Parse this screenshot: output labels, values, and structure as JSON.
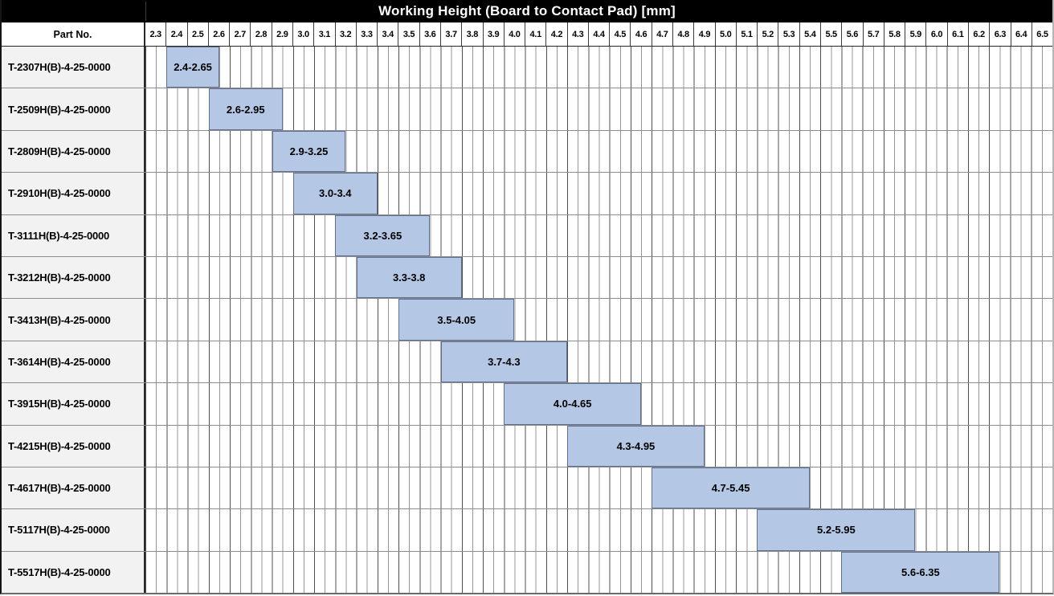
{
  "title_bar": {
    "title": "Working Height (Board to Contact Pad) [mm]"
  },
  "header": {
    "part_no_label": "Part No."
  },
  "colors": {
    "title_bg": "#000000",
    "title_text": "#ffffff",
    "bar_fill": "#b4c7e4",
    "bar_border": "#5f6e91",
    "part_cell_bg": "#f2f2f2",
    "grid_major": "#4f4f4f",
    "grid_minor": "#979797",
    "row_separator": "#8c8c8c"
  },
  "chart_data": {
    "type": "bar",
    "variant": "horizontal-range",
    "title": "Working Height (Board to Contact Pad) [mm]",
    "xlabel": "",
    "ylabel": "Part No.",
    "legend": "none",
    "grid": "vertical minor every 0.05, major every 0.1",
    "x_axis": {
      "min": 2.3,
      "max": 6.6,
      "tick_step": 0.1,
      "tick_labels": [
        "2.3",
        "2.4",
        "2.5",
        "2.6",
        "2.7",
        "2.8",
        "2.9",
        "3.0",
        "3.1",
        "3.2",
        "3.3",
        "3.4",
        "3.5",
        "3.6",
        "3.7",
        "3.8",
        "3.9",
        "4.0",
        "4.1",
        "4.2",
        "4.3",
        "4.4",
        "4.5",
        "4.6",
        "4.7",
        "4.8",
        "4.9",
        "5.0",
        "5.1",
        "5.2",
        "5.3",
        "5.4",
        "5.5",
        "5.6",
        "5.7",
        "5.8",
        "5.9",
        "6.0",
        "6.1",
        "6.2",
        "6.3",
        "6.4",
        "6.5"
      ]
    },
    "rows": [
      {
        "part": "T-2307H(B)-4-25-0000",
        "start": 2.4,
        "end": 2.65,
        "label": "2.4-2.65"
      },
      {
        "part": "T-2509H(B)-4-25-0000",
        "start": 2.6,
        "end": 2.95,
        "label": "2.6-2.95"
      },
      {
        "part": "T-2809H(B)-4-25-0000",
        "start": 2.9,
        "end": 3.25,
        "label": "2.9-3.25"
      },
      {
        "part": "T-2910H(B)-4-25-0000",
        "start": 3.0,
        "end": 3.4,
        "label": "3.0-3.4"
      },
      {
        "part": "T-3111H(B)-4-25-0000",
        "start": 3.2,
        "end": 3.65,
        "label": "3.2-3.65"
      },
      {
        "part": "T-3212H(B)-4-25-0000",
        "start": 3.3,
        "end": 3.8,
        "label": "3.3-3.8"
      },
      {
        "part": "T-3413H(B)-4-25-0000",
        "start": 3.5,
        "end": 4.05,
        "label": "3.5-4.05"
      },
      {
        "part": "T-3614H(B)-4-25-0000",
        "start": 3.7,
        "end": 4.3,
        "label": "3.7-4.3"
      },
      {
        "part": "T-3915H(B)-4-25-0000",
        "start": 4.0,
        "end": 4.65,
        "label": "4.0-4.65"
      },
      {
        "part": "T-4215H(B)-4-25-0000",
        "start": 4.3,
        "end": 4.95,
        "label": "4.3-4.95"
      },
      {
        "part": "T-4617H(B)-4-25-0000",
        "start": 4.7,
        "end": 5.45,
        "label": "4.7-5.45"
      },
      {
        "part": "T-5117H(B)-4-25-0000",
        "start": 5.2,
        "end": 5.95,
        "label": "5.2-5.95"
      },
      {
        "part": "T-5517H(B)-4-25-0000",
        "start": 5.6,
        "end": 6.35,
        "label": "5.6-6.35"
      }
    ]
  }
}
